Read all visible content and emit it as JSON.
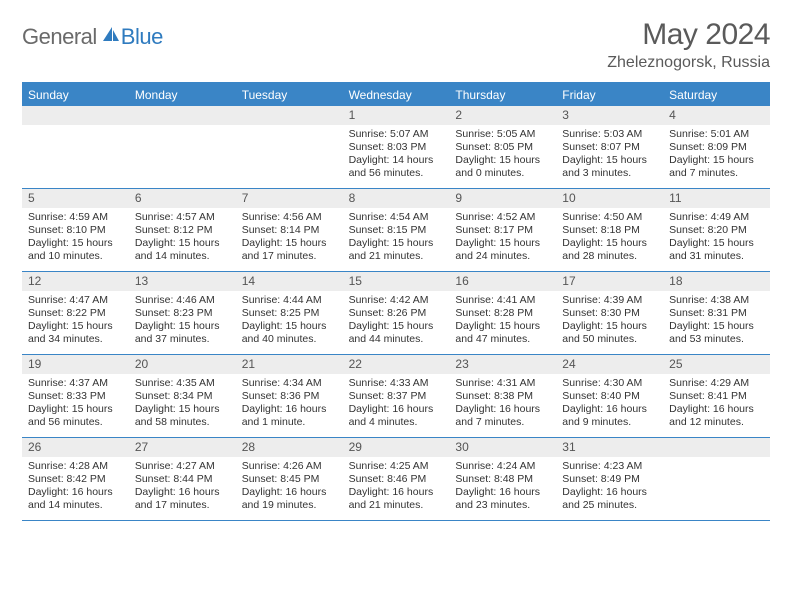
{
  "logo": {
    "general": "General",
    "blue": "Blue"
  },
  "title": "May 2024",
  "location": "Zheleznogorsk, Russia",
  "colors": {
    "accent": "#3a85c6",
    "header_bg": "#3a85c6",
    "daynum_bg": "#ededed",
    "text": "#333333",
    "title_text": "#5a5a5a"
  },
  "day_names": [
    "Sunday",
    "Monday",
    "Tuesday",
    "Wednesday",
    "Thursday",
    "Friday",
    "Saturday"
  ],
  "weeks": [
    [
      null,
      null,
      null,
      {
        "n": "1",
        "sr": "5:07 AM",
        "ss": "8:03 PM",
        "dl": "14 hours and 56 minutes."
      },
      {
        "n": "2",
        "sr": "5:05 AM",
        "ss": "8:05 PM",
        "dl": "15 hours and 0 minutes."
      },
      {
        "n": "3",
        "sr": "5:03 AM",
        "ss": "8:07 PM",
        "dl": "15 hours and 3 minutes."
      },
      {
        "n": "4",
        "sr": "5:01 AM",
        "ss": "8:09 PM",
        "dl": "15 hours and 7 minutes."
      }
    ],
    [
      {
        "n": "5",
        "sr": "4:59 AM",
        "ss": "8:10 PM",
        "dl": "15 hours and 10 minutes."
      },
      {
        "n": "6",
        "sr": "4:57 AM",
        "ss": "8:12 PM",
        "dl": "15 hours and 14 minutes."
      },
      {
        "n": "7",
        "sr": "4:56 AM",
        "ss": "8:14 PM",
        "dl": "15 hours and 17 minutes."
      },
      {
        "n": "8",
        "sr": "4:54 AM",
        "ss": "8:15 PM",
        "dl": "15 hours and 21 minutes."
      },
      {
        "n": "9",
        "sr": "4:52 AM",
        "ss": "8:17 PM",
        "dl": "15 hours and 24 minutes."
      },
      {
        "n": "10",
        "sr": "4:50 AM",
        "ss": "8:18 PM",
        "dl": "15 hours and 28 minutes."
      },
      {
        "n": "11",
        "sr": "4:49 AM",
        "ss": "8:20 PM",
        "dl": "15 hours and 31 minutes."
      }
    ],
    [
      {
        "n": "12",
        "sr": "4:47 AM",
        "ss": "8:22 PM",
        "dl": "15 hours and 34 minutes."
      },
      {
        "n": "13",
        "sr": "4:46 AM",
        "ss": "8:23 PM",
        "dl": "15 hours and 37 minutes."
      },
      {
        "n": "14",
        "sr": "4:44 AM",
        "ss": "8:25 PM",
        "dl": "15 hours and 40 minutes."
      },
      {
        "n": "15",
        "sr": "4:42 AM",
        "ss": "8:26 PM",
        "dl": "15 hours and 44 minutes."
      },
      {
        "n": "16",
        "sr": "4:41 AM",
        "ss": "8:28 PM",
        "dl": "15 hours and 47 minutes."
      },
      {
        "n": "17",
        "sr": "4:39 AM",
        "ss": "8:30 PM",
        "dl": "15 hours and 50 minutes."
      },
      {
        "n": "18",
        "sr": "4:38 AM",
        "ss": "8:31 PM",
        "dl": "15 hours and 53 minutes."
      }
    ],
    [
      {
        "n": "19",
        "sr": "4:37 AM",
        "ss": "8:33 PM",
        "dl": "15 hours and 56 minutes."
      },
      {
        "n": "20",
        "sr": "4:35 AM",
        "ss": "8:34 PM",
        "dl": "15 hours and 58 minutes."
      },
      {
        "n": "21",
        "sr": "4:34 AM",
        "ss": "8:36 PM",
        "dl": "16 hours and 1 minute."
      },
      {
        "n": "22",
        "sr": "4:33 AM",
        "ss": "8:37 PM",
        "dl": "16 hours and 4 minutes."
      },
      {
        "n": "23",
        "sr": "4:31 AM",
        "ss": "8:38 PM",
        "dl": "16 hours and 7 minutes."
      },
      {
        "n": "24",
        "sr": "4:30 AM",
        "ss": "8:40 PM",
        "dl": "16 hours and 9 minutes."
      },
      {
        "n": "25",
        "sr": "4:29 AM",
        "ss": "8:41 PM",
        "dl": "16 hours and 12 minutes."
      }
    ],
    [
      {
        "n": "26",
        "sr": "4:28 AM",
        "ss": "8:42 PM",
        "dl": "16 hours and 14 minutes."
      },
      {
        "n": "27",
        "sr": "4:27 AM",
        "ss": "8:44 PM",
        "dl": "16 hours and 17 minutes."
      },
      {
        "n": "28",
        "sr": "4:26 AM",
        "ss": "8:45 PM",
        "dl": "16 hours and 19 minutes."
      },
      {
        "n": "29",
        "sr": "4:25 AM",
        "ss": "8:46 PM",
        "dl": "16 hours and 21 minutes."
      },
      {
        "n": "30",
        "sr": "4:24 AM",
        "ss": "8:48 PM",
        "dl": "16 hours and 23 minutes."
      },
      {
        "n": "31",
        "sr": "4:23 AM",
        "ss": "8:49 PM",
        "dl": "16 hours and 25 minutes."
      },
      null
    ]
  ],
  "labels": {
    "sunrise": "Sunrise:",
    "sunset": "Sunset:",
    "daylight": "Daylight:"
  }
}
